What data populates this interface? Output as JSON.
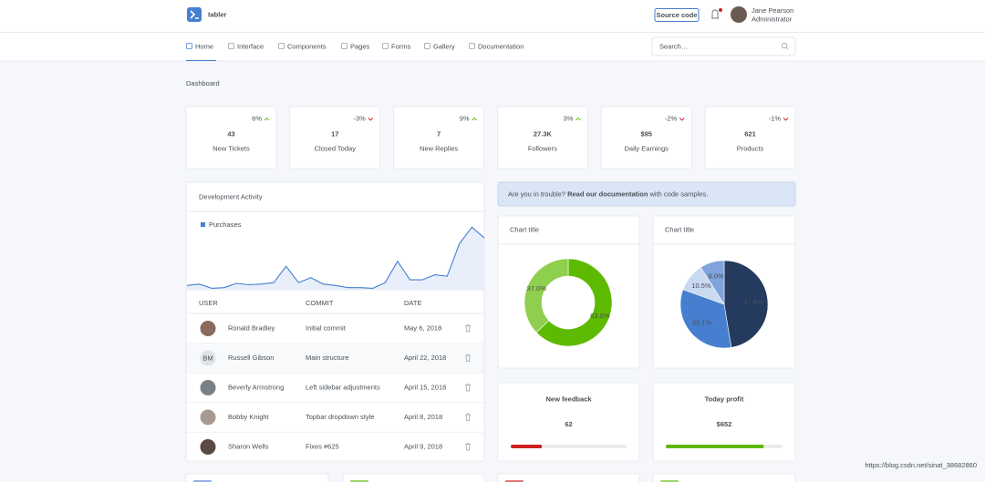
{
  "header": {
    "logo": "tabler",
    "source_code": "Source code",
    "user_name": "Jane Pearson",
    "user_role": "Administrator"
  },
  "nav": {
    "items": [
      "Home",
      "Interface",
      "Components",
      "Pages",
      "Forms",
      "Gallery",
      "Documentation"
    ],
    "search_placeholder": "Search…"
  },
  "page_title": "Dashboard",
  "stats": [
    {
      "value": "43",
      "label": "New Tickets",
      "change": "6%",
      "trend": "up"
    },
    {
      "value": "17",
      "label": "Closed Today",
      "change": "-3%",
      "trend": "down"
    },
    {
      "value": "7",
      "label": "New Replies",
      "change": "9%",
      "trend": "up"
    },
    {
      "value": "27.3K",
      "label": "Followers",
      "change": "3%",
      "trend": "up"
    },
    {
      "value": "$95",
      "label": "Daily Earnings",
      "change": "-2%",
      "trend": "down"
    },
    {
      "value": "621",
      "label": "Products",
      "change": "-1%",
      "trend": "down"
    }
  ],
  "activity": {
    "title": "Development Activity",
    "legend": "Purchases",
    "color": "#467fcf",
    "ylim": [
      0,
      100
    ],
    "values": [
      6,
      8,
      2,
      3,
      9,
      7,
      8,
      10,
      33,
      10,
      17,
      8,
      6,
      3,
      3,
      2,
      10,
      40,
      14,
      14,
      21,
      19,
      65,
      88,
      73
    ],
    "columns": [
      "USER",
      "COMMIT",
      "DATE"
    ],
    "rows": [
      {
        "name": "Ronald Bradley",
        "commit": "Initial commit",
        "date": "May 6, 2018"
      },
      {
        "initials": "BM",
        "name": "Russell Gibson",
        "commit": "Main structure",
        "date": "April 22, 2018"
      },
      {
        "name": "Beverly Armstrong",
        "commit": "Left sidebar adjustments",
        "date": "April 15, 2018"
      },
      {
        "name": "Bobby Knight",
        "commit": "Topbar dropdown style",
        "date": "April 8, 2018"
      },
      {
        "name": "Sharon Wells",
        "commit": "Fixes #625",
        "date": "April 9, 2018"
      }
    ]
  },
  "alert": {
    "lead": "Are you in trouble?",
    "link": "Read our documentation",
    "tail": "with code samples."
  },
  "donut": {
    "title": "Chart title",
    "values": [
      63,
      37
    ],
    "value_labels": [
      "63.0%",
      "37.0%"
    ],
    "colors": [
      "#5eba00",
      "#8ecf4d"
    ]
  },
  "pie": {
    "title": "Chart title",
    "values": [
      47.4,
      33.1,
      10.5,
      9.0
    ],
    "value_labels": [
      "47.4%",
      "33.1%",
      "10.5%",
      "9.0%"
    ],
    "colors": [
      "#243a5e",
      "#467fcf",
      "#c8d9f1",
      "#7fa3dc"
    ]
  },
  "feedback": {
    "title": "New feedback",
    "value": "62",
    "progress": 27,
    "scale": [
      0,
      100
    ],
    "color": "#cd201f"
  },
  "profit": {
    "title": "Today profit",
    "value": "$652",
    "progress": 84,
    "scale": [
      0,
      100
    ],
    "color": "#5eba00"
  },
  "watermark": "https://blog.csdn.net/sinat_38682860"
}
